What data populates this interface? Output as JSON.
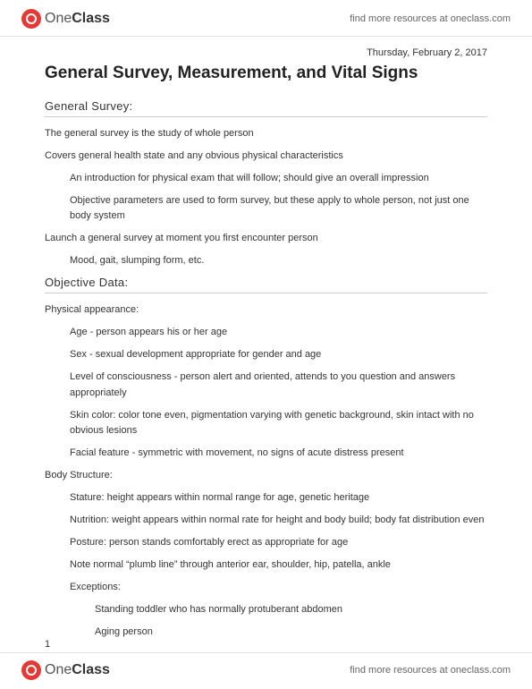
{
  "brand": {
    "prefix": "One",
    "suffix": "Class"
  },
  "resources_text": "find more resources at oneclass.com",
  "date": "Thursday, February 2, 2017",
  "title": "General Survey, Measurement, and Vital Signs",
  "page_number": "1",
  "sections": [
    {
      "heading": "General Survey:",
      "lines": [
        {
          "text": "The general survey is the study of whole person",
          "indent": 0
        },
        {
          "text": "Covers general health state and any obvious physical characteristics",
          "indent": 0
        },
        {
          "text": "An introduction for physical exam that will follow; should give an overall impression",
          "indent": 1
        },
        {
          "text": "Objective parameters are used to form survey, but these apply to whole person, not just one body system",
          "indent": 1
        },
        {
          "text": "Launch a general survey at moment you first encounter person",
          "indent": 0
        },
        {
          "text": "Mood, gait, slumping form, etc.",
          "indent": 1
        }
      ]
    },
    {
      "heading": "Objective Data:",
      "lines": [
        {
          "text": "Physical appearance:",
          "indent": 0
        },
        {
          "text": "Age - person appears his or her age",
          "indent": 1
        },
        {
          "text": "Sex - sexual development appropriate for gender and age",
          "indent": 1
        },
        {
          "text": "Level of consciousness - person alert and oriented, attends to you question and answers appropriately",
          "indent": 1
        },
        {
          "text": "Skin color: color tone even, pigmentation varying with genetic background, skin intact with no obvious lesions",
          "indent": 1
        },
        {
          "text": "Facial feature - symmetric with movement, no signs of acute distress present",
          "indent": 1
        },
        {
          "text": "Body Structure:",
          "indent": 0
        },
        {
          "text": "Stature: height appears within normal range for age, genetic heritage",
          "indent": 1
        },
        {
          "text": "Nutrition: weight appears within normal rate for height and body build; body fat distribution even",
          "indent": 1
        },
        {
          "text": "Posture: person stands comfortably erect as appropriate for age",
          "indent": 1
        },
        {
          "text": "Note normal “plumb line” through anterior ear, shoulder, hip, patella, ankle",
          "indent": 1
        },
        {
          "text": "Exceptions:",
          "indent": 1
        },
        {
          "text": "Standing toddler who has normally protuberant abdomen",
          "indent": 2
        },
        {
          "text": "Aging person",
          "indent": 2
        }
      ]
    }
  ]
}
